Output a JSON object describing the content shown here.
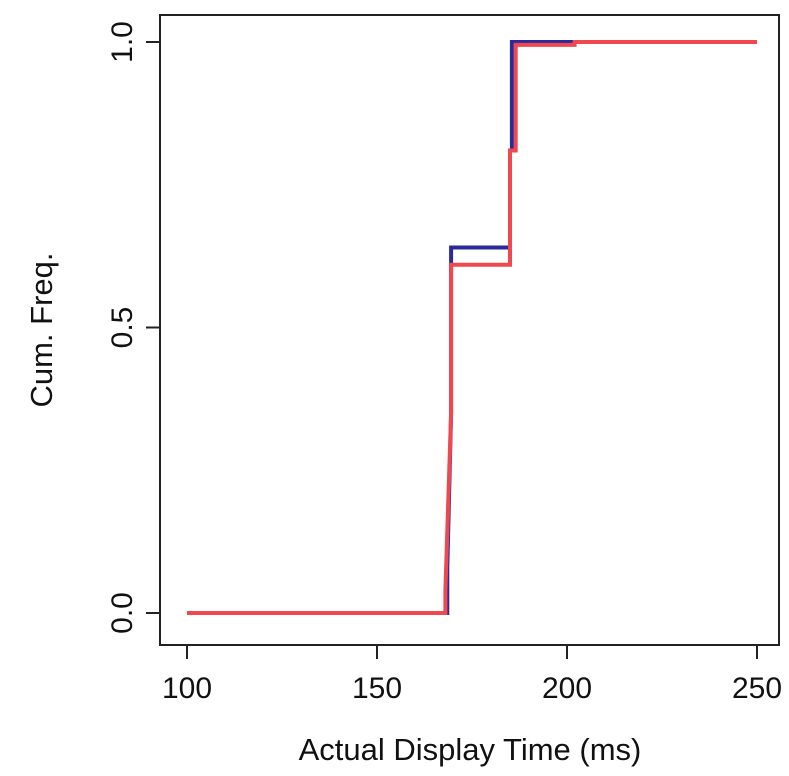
{
  "chart_data": {
    "type": "line",
    "step": true,
    "title": "",
    "xlabel": "Actual Display Time (ms)",
    "ylabel": "Cum. Freq.",
    "xlim": [
      100,
      250
    ],
    "ylim": [
      0,
      1
    ],
    "x_ticks": [
      {
        "value": 100,
        "label": "100"
      },
      {
        "value": 150,
        "label": "150"
      },
      {
        "value": 200,
        "label": "200"
      },
      {
        "value": 250,
        "label": "250"
      }
    ],
    "y_ticks": [
      {
        "value": 0.0,
        "label": "0.0"
      },
      {
        "value": 0.5,
        "label": "0.5"
      },
      {
        "value": 1.0,
        "label": "1.0"
      }
    ],
    "grid": false,
    "legend": "none",
    "series": [
      {
        "color": "#2a2a9c",
        "x": [
          100,
          168.5,
          168.5,
          169.5,
          169.5,
          185,
          185,
          185.5,
          185.5,
          250
        ],
        "y": [
          0.0,
          0.0,
          0.08,
          0.35,
          0.64,
          0.64,
          0.81,
          0.81,
          1.0,
          1.0
        ]
      },
      {
        "color": "#f0484f",
        "x": [
          100,
          168,
          168,
          169.5,
          169.5,
          185,
          185,
          186.5,
          186.5,
          202,
          202,
          250
        ],
        "y": [
          0.0,
          0.0,
          0.04,
          0.35,
          0.61,
          0.61,
          0.81,
          0.81,
          0.995,
          0.995,
          1.0,
          1.0
        ]
      }
    ]
  }
}
